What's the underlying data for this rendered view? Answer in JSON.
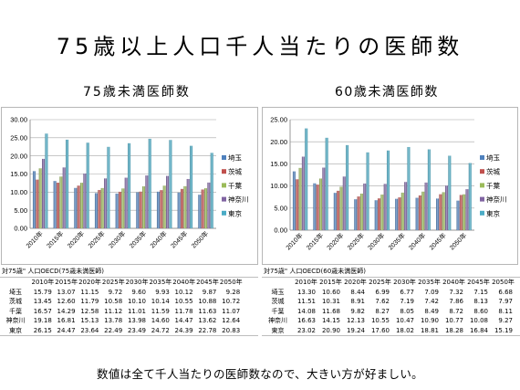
{
  "slide": {
    "title": "75歳以上人口千人当たりの医師数",
    "note": "数値は全て千人当たりの医師数なので、大きい方が好ましい。"
  },
  "chart_data": [
    {
      "type": "bar",
      "title": "75歳未満医師数",
      "categories": [
        "2010年",
        "2015年",
        "2020年",
        "2025年",
        "2030年",
        "2035年",
        "2040年",
        "2045年",
        "2050年"
      ],
      "ylim": [
        0,
        30
      ],
      "yticks": [
        "0.00",
        "5.00",
        "10.00",
        "15.00",
        "20.00",
        "25.00",
        "30.00"
      ],
      "grid": true,
      "legend": "right",
      "series": [
        {
          "name": "埼玉",
          "color": "#4f81bd",
          "values": [
            15.79,
            13.07,
            11.15,
            9.72,
            9.6,
            9.93,
            10.12,
            9.87,
            9.28
          ]
        },
        {
          "name": "茨城",
          "color": "#c0504d",
          "values": [
            13.45,
            12.6,
            11.79,
            10.58,
            10.1,
            10.14,
            10.55,
            10.88,
            10.72
          ]
        },
        {
          "name": "千葉",
          "color": "#9bbb59",
          "values": [
            16.57,
            14.29,
            12.58,
            11.12,
            11.01,
            11.59,
            11.78,
            11.63,
            11.07
          ]
        },
        {
          "name": "神奈川",
          "color": "#8064a2",
          "values": [
            19.18,
            16.81,
            15.13,
            13.78,
            13.98,
            14.6,
            14.47,
            13.62,
            12.64
          ]
        },
        {
          "name": "東京",
          "color": "#4bacc6",
          "values": [
            26.15,
            24.47,
            23.64,
            22.49,
            23.49,
            24.72,
            24.39,
            22.78,
            20.83
          ]
        }
      ],
      "table_caption": "対75歳\" 人口OECD(75歳未満医師)"
    },
    {
      "type": "bar",
      "title": "60歳未満医師数",
      "categories": [
        "2010年",
        "2015年",
        "2020年",
        "2025年",
        "2030年",
        "2035年",
        "2040年",
        "2045年",
        "2050年"
      ],
      "ylim": [
        0,
        25
      ],
      "yticks": [
        "0.00",
        "5.00",
        "10.00",
        "15.00",
        "20.00",
        "25.00"
      ],
      "grid": true,
      "legend": "right",
      "series": [
        {
          "name": "埼玉",
          "color": "#4f81bd",
          "values": [
            13.3,
            10.6,
            8.44,
            6.99,
            6.77,
            7.09,
            7.32,
            7.15,
            6.68
          ]
        },
        {
          "name": "茨城",
          "color": "#c0504d",
          "values": [
            11.51,
            10.31,
            8.91,
            7.62,
            7.19,
            7.42,
            7.86,
            8.13,
            7.97
          ]
        },
        {
          "name": "千葉",
          "color": "#9bbb59",
          "values": [
            14.08,
            11.68,
            9.82,
            8.27,
            8.05,
            8.49,
            8.72,
            8.6,
            8.11
          ]
        },
        {
          "name": "神奈川",
          "color": "#8064a2",
          "values": [
            16.63,
            14.15,
            12.13,
            10.55,
            10.47,
            10.9,
            10.77,
            10.08,
            9.27
          ]
        },
        {
          "name": "東京",
          "color": "#4bacc6",
          "values": [
            23.02,
            20.9,
            19.24,
            17.6,
            18.02,
            18.81,
            18.28,
            16.84,
            15.19
          ]
        }
      ],
      "table_caption": "対75歳\" 人口OECD(60歳未満医師)"
    }
  ]
}
